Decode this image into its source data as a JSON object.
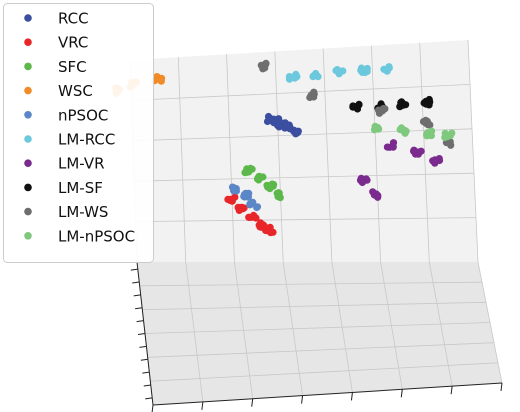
{
  "chart_data": {
    "type": "scatter",
    "subtype": "3d-scatter",
    "title": "",
    "xlabel": "",
    "ylabel": "",
    "zlabel": "",
    "grid": true,
    "legend_position": "top-left",
    "tick_labels_visible": false,
    "series": [
      {
        "name": "RCC",
        "color": "#3b4ea0",
        "points": [
          [
            -0.15,
            0.1,
            0.6
          ],
          [
            -0.1,
            0.15,
            0.55
          ],
          [
            -0.08,
            0.2,
            0.5
          ],
          [
            -0.05,
            0.25,
            0.45
          ],
          [
            0.0,
            0.3,
            0.4
          ],
          [
            0.05,
            0.33,
            0.35
          ]
        ]
      },
      {
        "name": "VRC",
        "color": "#e8262a",
        "points": [
          [
            -0.45,
            -0.2,
            0.05
          ],
          [
            -0.4,
            -0.25,
            0.0
          ],
          [
            -0.35,
            -0.3,
            -0.05
          ],
          [
            -0.3,
            -0.35,
            -0.1
          ],
          [
            -0.27,
            -0.38,
            -0.14
          ]
        ]
      },
      {
        "name": "SFC",
        "color": "#5cb84a",
        "points": [
          [
            -0.3,
            0.0,
            0.2
          ],
          [
            -0.25,
            -0.05,
            0.15
          ],
          [
            -0.2,
            -0.1,
            0.1
          ],
          [
            -0.15,
            -0.15,
            0.05
          ]
        ]
      },
      {
        "name": "WSC",
        "color": "#f18b27",
        "points": [
          [
            -0.95,
            0.5,
            0.7
          ],
          [
            -0.85,
            0.55,
            0.72
          ],
          [
            -0.7,
            0.58,
            0.75
          ]
        ]
      },
      {
        "name": "nPSOC",
        "color": "#5b86c8",
        "points": [
          [
            -0.4,
            -0.1,
            0.1
          ],
          [
            -0.35,
            -0.15,
            0.05
          ],
          [
            -0.32,
            -0.2,
            0.0
          ]
        ]
      },
      {
        "name": "LM-RCC",
        "color": "#6cc8dc",
        "points": [
          [
            0.1,
            0.6,
            0.7
          ],
          [
            0.25,
            0.65,
            0.68
          ],
          [
            0.4,
            0.7,
            0.66
          ],
          [
            0.55,
            0.75,
            0.64
          ],
          [
            0.7,
            0.8,
            0.62
          ]
        ]
      },
      {
        "name": "LM-VR",
        "color": "#7b2a8e",
        "points": [
          [
            0.6,
            0.3,
            0.2
          ],
          [
            0.75,
            0.25,
            0.15
          ],
          [
            0.85,
            0.2,
            0.1
          ],
          [
            0.4,
            0.1,
            0.0
          ],
          [
            0.45,
            0.05,
            -0.1
          ]
        ]
      },
      {
        "name": "LM-SF",
        "color": "#111111",
        "points": [
          [
            0.45,
            0.5,
            0.45
          ],
          [
            0.6,
            0.55,
            0.42
          ],
          [
            0.75,
            0.6,
            0.4
          ],
          [
            0.9,
            0.65,
            0.38
          ]
        ]
      },
      {
        "name": "LM-WS",
        "color": "#6e6e6e",
        "points": [
          [
            -0.05,
            0.7,
            0.75
          ],
          [
            0.2,
            0.55,
            0.55
          ],
          [
            0.6,
            0.5,
            0.4
          ],
          [
            0.85,
            0.45,
            0.3
          ],
          [
            0.95,
            0.3,
            0.2
          ]
        ]
      },
      {
        "name": "LM-nPSOC",
        "color": "#7fc97f",
        "points": [
          [
            0.55,
            0.4,
            0.3
          ],
          [
            0.7,
            0.38,
            0.28
          ],
          [
            0.85,
            0.36,
            0.26
          ],
          [
            0.95,
            0.34,
            0.24
          ]
        ]
      }
    ]
  }
}
